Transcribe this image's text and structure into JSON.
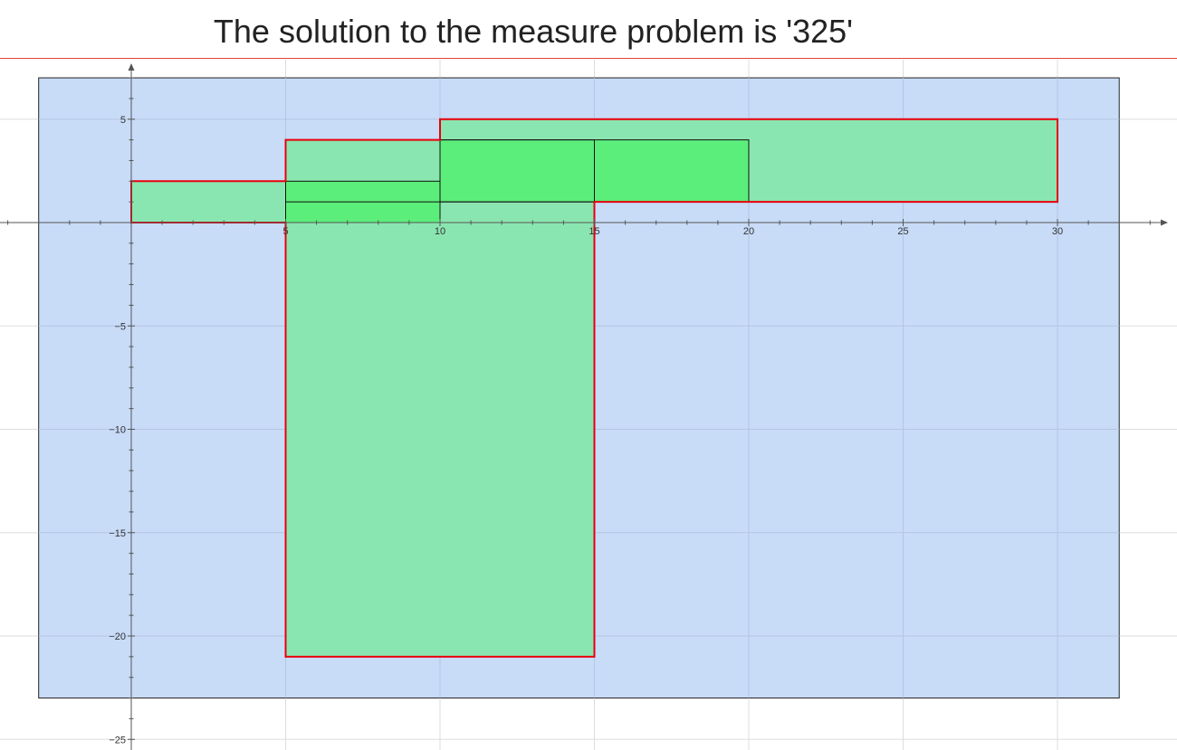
{
  "title": "The solution to the measure problem is '325'",
  "colors": {
    "background_rect_fill": "#c5d9f7",
    "background_rect_stroke": "#222222",
    "union_fill": "#8ae6b0",
    "overlap_fill": "#5cee7a",
    "union_outline": "#e8000b",
    "rect_outline": "#111111",
    "grid": "#dddddd",
    "axis": "#555555",
    "title_rule": "#e0443a"
  },
  "chart_data": {
    "type": "diagram",
    "x_ticks": [
      5,
      10,
      15,
      20,
      25,
      30
    ],
    "y_ticks": [
      5,
      -5,
      -10,
      -15,
      -20,
      -25
    ],
    "x_tick_labels": [
      "5",
      "10",
      "15",
      "20",
      "25",
      "30"
    ],
    "y_tick_labels": [
      "5",
      "−5",
      "−10",
      "−15",
      "−20",
      "−25"
    ],
    "bounding_box": {
      "x1": -3,
      "y1": -23,
      "x2": 32,
      "y2": 7
    },
    "rectangles": [
      {
        "x1": 0,
        "y1": 0,
        "x2": 10,
        "y2": 2
      },
      {
        "x1": 5,
        "y1": -21,
        "x2": 15,
        "y2": 4
      },
      {
        "x1": 10,
        "y1": 1,
        "x2": 30,
        "y2": 5
      },
      {
        "x1": 5,
        "y1": 1,
        "x2": 20,
        "y2": 4
      }
    ],
    "overlap_regions": [
      {
        "x1": 5,
        "y1": 0,
        "x2": 10,
        "y2": 2
      },
      {
        "x1": 10,
        "y1": 1,
        "x2": 20,
        "y2": 4
      }
    ],
    "union_outline": [
      [
        0,
        0
      ],
      [
        5,
        0
      ],
      [
        5,
        -21
      ],
      [
        15,
        -21
      ],
      [
        15,
        1
      ],
      [
        30,
        1
      ],
      [
        30,
        5
      ],
      [
        10,
        5
      ],
      [
        10,
        4
      ],
      [
        5,
        4
      ],
      [
        5,
        2
      ],
      [
        0,
        2
      ]
    ],
    "measure": 325,
    "grid": true
  }
}
